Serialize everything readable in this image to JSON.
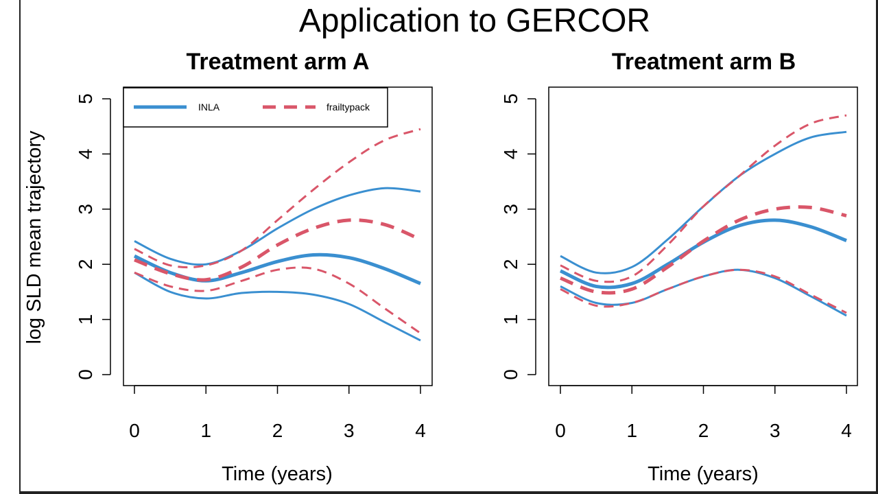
{
  "title": "Application to GERCOR",
  "colors": {
    "INLA": "#3a8fd0",
    "frailtypack": "#d95669"
  },
  "ylabel": "log SLD mean trajectory",
  "chart_data": [
    {
      "type": "line",
      "title": "Treatment arm A",
      "xlabel": "Time (years)",
      "ylabel": "log SLD mean trajectory",
      "xlim": [
        0,
        4
      ],
      "ylim": [
        0,
        5
      ],
      "xticks": [
        "0",
        "1",
        "2",
        "3",
        "4"
      ],
      "yticks": [
        "0",
        "1",
        "2",
        "3",
        "4",
        "5"
      ],
      "legend": {
        "position": "top-left",
        "entries": [
          "INLA",
          "frailtypack"
        ]
      },
      "series": [
        {
          "name": "INLA",
          "role": "mean",
          "x": [
            0,
            0.5,
            1,
            1.5,
            2,
            2.5,
            3,
            3.5,
            4
          ],
          "y": [
            2.15,
            1.85,
            1.7,
            1.85,
            2.05,
            2.17,
            2.12,
            1.92,
            1.65
          ]
        },
        {
          "name": "INLA",
          "role": "upper",
          "x": [
            0,
            0.5,
            1,
            1.5,
            2,
            2.5,
            3,
            3.5,
            4
          ],
          "y": [
            2.42,
            2.1,
            2.0,
            2.25,
            2.65,
            3.0,
            3.25,
            3.38,
            3.32
          ]
        },
        {
          "name": "INLA",
          "role": "lower",
          "x": [
            0,
            0.5,
            1,
            1.5,
            2,
            2.5,
            3,
            3.5,
            4
          ],
          "y": [
            1.85,
            1.5,
            1.38,
            1.48,
            1.5,
            1.45,
            1.28,
            0.95,
            0.62
          ]
        },
        {
          "name": "frailtypack",
          "role": "mean",
          "x": [
            0,
            0.5,
            1,
            1.5,
            2,
            2.5,
            3,
            3.5,
            4
          ],
          "y": [
            2.08,
            1.83,
            1.72,
            1.95,
            2.35,
            2.65,
            2.8,
            2.72,
            2.45
          ]
        },
        {
          "name": "frailtypack",
          "role": "upper",
          "x": [
            0,
            0.5,
            1,
            1.5,
            2,
            2.5,
            3,
            3.5,
            4
          ],
          "y": [
            2.28,
            1.98,
            1.98,
            2.25,
            2.8,
            3.35,
            3.85,
            4.25,
            4.45
          ]
        },
        {
          "name": "frailtypack",
          "role": "lower",
          "x": [
            0,
            0.5,
            1,
            1.5,
            2,
            2.5,
            3,
            3.5,
            4
          ],
          "y": [
            1.85,
            1.6,
            1.52,
            1.7,
            1.9,
            1.92,
            1.65,
            1.2,
            0.75
          ]
        }
      ]
    },
    {
      "type": "line",
      "title": "Treatment arm B",
      "xlabel": "Time (years)",
      "ylabel": "",
      "xlim": [
        0,
        4
      ],
      "ylim": [
        0,
        5
      ],
      "xticks": [
        "0",
        "1",
        "2",
        "3",
        "4"
      ],
      "yticks": [
        "0",
        "1",
        "2",
        "3",
        "4",
        "5"
      ],
      "series": [
        {
          "name": "INLA",
          "role": "mean",
          "x": [
            0,
            0.5,
            1,
            1.5,
            2,
            2.5,
            3,
            3.5,
            4
          ],
          "y": [
            1.88,
            1.6,
            1.65,
            2.0,
            2.4,
            2.7,
            2.8,
            2.68,
            2.43
          ]
        },
        {
          "name": "INLA",
          "role": "upper",
          "x": [
            0,
            0.5,
            1,
            1.5,
            2,
            2.5,
            3,
            3.5,
            4
          ],
          "y": [
            2.15,
            1.85,
            1.95,
            2.45,
            3.05,
            3.6,
            4.0,
            4.3,
            4.4
          ]
        },
        {
          "name": "INLA",
          "role": "lower",
          "x": [
            0,
            0.5,
            1,
            1.5,
            2,
            2.5,
            3,
            3.5,
            4
          ],
          "y": [
            1.6,
            1.3,
            1.3,
            1.55,
            1.78,
            1.9,
            1.75,
            1.42,
            1.07
          ]
        },
        {
          "name": "frailtypack",
          "role": "mean",
          "x": [
            0,
            0.5,
            1,
            1.5,
            2,
            2.5,
            3,
            3.5,
            4
          ],
          "y": [
            1.75,
            1.5,
            1.55,
            1.95,
            2.42,
            2.8,
            3.0,
            3.03,
            2.88
          ]
        },
        {
          "name": "frailtypack",
          "role": "upper",
          "x": [
            0,
            0.5,
            1,
            1.5,
            2,
            2.5,
            3,
            3.5,
            4
          ],
          "y": [
            1.98,
            1.7,
            1.78,
            2.35,
            3.05,
            3.6,
            4.15,
            4.55,
            4.7
          ]
        },
        {
          "name": "frailtypack",
          "role": "lower",
          "x": [
            0,
            0.5,
            1,
            1.5,
            2,
            2.5,
            3,
            3.5,
            4
          ],
          "y": [
            1.55,
            1.25,
            1.3,
            1.55,
            1.78,
            1.9,
            1.78,
            1.45,
            1.12
          ]
        }
      ]
    }
  ]
}
